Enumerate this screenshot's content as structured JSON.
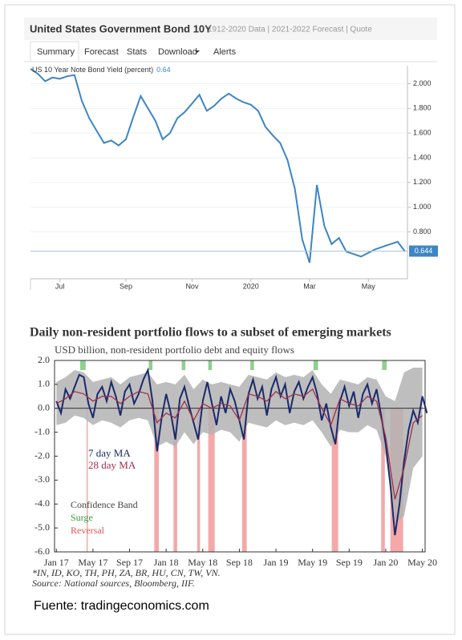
{
  "tabs": [
    "Summary",
    "Forecast",
    "Stats",
    "Download",
    "Alerts"
  ],
  "caption": "Fuente: tradingeconomics.com",
  "chart_data": [
    {
      "type": "line",
      "title": "United States Government Bond 10Y",
      "subtitle": "1912-2020 Data | 2021-2022 Forecast | Quote",
      "legend_label": "US 10 Year Note Bond Yield (percent)",
      "legend_value": 0.64,
      "last_value": 0.644,
      "categories": [
        null,
        null,
        null,
        null,
        "Jul",
        null,
        null,
        null,
        null,
        null,
        null,
        null,
        null,
        "Sep",
        null,
        null,
        null,
        null,
        null,
        null,
        null,
        null,
        "Nov",
        null,
        null,
        null,
        null,
        null,
        null,
        null,
        "2020",
        null,
        null,
        null,
        null,
        null,
        null,
        null,
        "Mar",
        null,
        null,
        null,
        null,
        null,
        null,
        null,
        "May",
        null,
        null,
        null,
        null,
        null
      ],
      "series": [
        {
          "name": "US 10 Year Note Bond Yield",
          "color": "#3d85c6",
          "values": [
            2.12,
            2.08,
            2.02,
            2.05,
            2.04,
            2.06,
            2.07,
            1.86,
            1.72,
            1.62,
            1.52,
            1.54,
            1.5,
            1.55,
            1.73,
            1.9,
            1.8,
            1.7,
            1.55,
            1.6,
            1.72,
            1.77,
            1.84,
            1.91,
            1.78,
            1.82,
            1.88,
            1.92,
            1.88,
            1.85,
            1.83,
            1.78,
            1.65,
            1.58,
            1.52,
            1.38,
            1.15,
            0.74,
            0.55,
            1.18,
            0.85,
            0.7,
            0.75,
            0.64,
            0.62,
            0.6,
            0.63,
            0.66,
            0.68,
            0.7,
            0.72,
            0.64
          ]
        }
      ],
      "ylim": [
        0.42,
        2.12
      ],
      "yticks": [
        {
          "value": 0.8,
          "label": "0.800"
        },
        {
          "value": 1.0,
          "label": "1.000"
        },
        {
          "value": 1.2,
          "label": "1.200"
        },
        {
          "value": 1.4,
          "label": "1.400"
        },
        {
          "value": 1.6,
          "label": "1.600"
        },
        {
          "value": 1.8,
          "label": "1.800"
        },
        {
          "value": 2.0,
          "label": "2.000"
        }
      ],
      "grid": true
    },
    {
      "type": "line",
      "title": "Daily non-resident portfolio flows to a subset of emerging markets",
      "subtitle": "USD billion, non-resident portfolio debt and equity flows",
      "xlim": [
        -0.2,
        40.3
      ],
      "xticks": [
        {
          "value": 0,
          "label": "Jan 17"
        },
        {
          "value": 4,
          "label": "May 17"
        },
        {
          "value": 8,
          "label": "Sep 17"
        },
        {
          "value": 12,
          "label": "Jan 18"
        },
        {
          "value": 16,
          "label": "May 18"
        },
        {
          "value": 20,
          "label": "Sep 18"
        },
        {
          "value": 24,
          "label": "Jan 19"
        },
        {
          "value": 28,
          "label": "May 19"
        },
        {
          "value": 32,
          "label": "Sep 19"
        },
        {
          "value": 36,
          "label": "Jan 20"
        },
        {
          "value": 40,
          "label": "May 20"
        }
      ],
      "ylim": [
        -6,
        2
      ],
      "yticks": [
        {
          "value": 2,
          "label": "2.0"
        },
        {
          "value": 1,
          "label": "1.0"
        },
        {
          "value": 0,
          "label": "0.0"
        },
        {
          "value": -1,
          "label": "-1.0"
        },
        {
          "value": -2,
          "label": "-2.0"
        },
        {
          "value": -3,
          "label": "-3.0"
        },
        {
          "value": -4,
          "label": "-4.0"
        },
        {
          "value": -5,
          "label": "-5.0"
        },
        {
          "value": -6,
          "label": "-6.0"
        }
      ],
      "band": {
        "name": "Confidence Band",
        "color": "#b3b3b3",
        "x": [
          0,
          1,
          2,
          3,
          4,
          5,
          6,
          7,
          8,
          9,
          10,
          11,
          12,
          13,
          14,
          15,
          16,
          17,
          18,
          19,
          20,
          21,
          22,
          23,
          24,
          25,
          26,
          27,
          28,
          29,
          30,
          31,
          32,
          33,
          34,
          35,
          36,
          37,
          38,
          39,
          40
        ],
        "upper": [
          1.1,
          1.3,
          1.6,
          1.5,
          1.1,
          1.2,
          1.3,
          1.0,
          1.3,
          1.4,
          1.5,
          1.0,
          1.1,
          1.0,
          1.4,
          0.8,
          1.2,
          1.0,
          1.1,
          1.0,
          0.9,
          1.4,
          1.3,
          1.2,
          1.5,
          1.3,
          1.4,
          1.3,
          1.6,
          1.0,
          0.6,
          1.2,
          1.1,
          1.0,
          1.3,
          1.2,
          0.5,
          0.3,
          1.5,
          1.7,
          1.7
        ],
        "lower": [
          -0.7,
          -0.6,
          -0.3,
          -0.4,
          -0.7,
          -0.5,
          -0.6,
          -0.8,
          -0.5,
          -0.4,
          -0.5,
          -1.6,
          -1.4,
          -1.6,
          -1.0,
          -1.5,
          -1.0,
          -1.1,
          -0.9,
          -1.0,
          -1.4,
          -0.6,
          -0.7,
          -0.8,
          -0.5,
          -0.7,
          -0.6,
          -0.7,
          -0.5,
          -1.0,
          -1.6,
          -0.9,
          -1.0,
          -1.0,
          -0.7,
          -0.9,
          -2.0,
          -4.8,
          -4.5,
          -2.5,
          -2.0
        ]
      },
      "surge": {
        "name": "Surge",
        "color": "#8fcf8f",
        "spans": [
          [
            2.6,
            3.2
          ],
          [
            10.1,
            10.5
          ],
          [
            13.7,
            14.1
          ],
          [
            16.6,
            17.0
          ],
          [
            21.2,
            21.6
          ],
          [
            28.1,
            28.6
          ],
          [
            35.6,
            36.1
          ]
        ]
      },
      "reversal": {
        "name": "Reversal",
        "color": "#f4a8a8",
        "spans": [
          [
            3.3,
            3.4
          ],
          [
            10.7,
            11.2
          ],
          [
            12.8,
            13.2
          ],
          [
            15.4,
            15.7
          ],
          [
            16.6,
            17.3
          ],
          [
            20.3,
            20.8
          ],
          [
            30.1,
            30.8
          ],
          [
            35.5,
            35.9
          ],
          [
            36.5,
            37.9
          ]
        ]
      },
      "series": [
        {
          "name": "7 day MA",
          "color": "#1a2a6c",
          "x": [
            0,
            0.5,
            1,
            1.5,
            2,
            2.5,
            3,
            3.5,
            4,
            4.5,
            5,
            5.5,
            6,
            6.5,
            7,
            7.5,
            8,
            8.5,
            9,
            9.5,
            10,
            10.5,
            11,
            11.5,
            12,
            12.5,
            13,
            13.5,
            14,
            14.5,
            15,
            15.5,
            16,
            16.5,
            17,
            17.5,
            18,
            18.5,
            19,
            19.5,
            20,
            20.5,
            21,
            21.5,
            22,
            22.5,
            23,
            23.5,
            24,
            24.5,
            25,
            25.5,
            26,
            26.5,
            27,
            27.5,
            28,
            28.5,
            29,
            29.5,
            30,
            30.5,
            31,
            31.5,
            32,
            32.5,
            33,
            33.5,
            34,
            34.5,
            35,
            35.5,
            36,
            36.5,
            37,
            37.5,
            38,
            38.5,
            39,
            39.5,
            40,
            40.5
          ],
          "values": [
            0.3,
            -0.2,
            0.8,
            0.4,
            0.9,
            1.4,
            1.3,
            0.2,
            -0.4,
            0.6,
            0.9,
            0.3,
            1.1,
            0.5,
            -0.3,
            0.7,
            1.0,
            0.2,
            0.6,
            1.2,
            1.6,
            0.3,
            -1.8,
            -0.4,
            0.6,
            -0.2,
            -1.3,
            0.4,
            0.9,
            0.1,
            -0.6,
            -1.3,
            0.3,
            1.1,
            0.2,
            -0.7,
            0.5,
            -0.2,
            0.8,
            0.3,
            -0.5,
            -1.3,
            0.6,
            1.2,
            0.4,
            0.9,
            -0.3,
            0.8,
            1.3,
            0.5,
            1.0,
            -0.2,
            0.7,
            1.1,
            0.4,
            0.9,
            1.3,
            0.6,
            -0.5,
            0.2,
            -0.8,
            -1.5,
            0.3,
            0.9,
            0.1,
            0.7,
            -0.4,
            0.6,
            1.0,
            0.2,
            0.8,
            -0.3,
            -1.5,
            -3.2,
            -5.3,
            -4.0,
            -2.2,
            -0.9,
            -0.1,
            -0.6,
            0.5,
            -0.2
          ]
        },
        {
          "name": "28 day MA",
          "color": "#a0304a",
          "x": [
            0,
            1,
            2,
            3,
            4,
            5,
            6,
            7,
            8,
            9,
            10,
            11,
            12,
            13,
            14,
            15,
            16,
            17,
            18,
            19,
            20,
            21,
            22,
            23,
            24,
            25,
            26,
            27,
            28,
            29,
            30,
            31,
            32,
            33,
            34,
            35,
            36,
            37,
            38,
            39,
            40
          ],
          "values": [
            0.2,
            0.4,
            0.7,
            0.6,
            0.3,
            0.5,
            0.5,
            0.2,
            0.5,
            0.7,
            0.6,
            -0.6,
            -0.2,
            -0.4,
            0.3,
            -0.5,
            0.2,
            0.0,
            0.2,
            0.1,
            -0.5,
            0.6,
            0.5,
            0.3,
            0.7,
            0.4,
            0.6,
            0.5,
            0.8,
            0.0,
            -0.7,
            0.4,
            0.2,
            0.1,
            0.5,
            0.3,
            -1.2,
            -3.8,
            -2.5,
            -0.6,
            -0.3
          ]
        }
      ],
      "notes": [
        "*IN, ID, KO, TH, PH, ZA, BR, HU, CN, TW, VN.",
        "Source: National sources, Bloomberg, IIF."
      ]
    }
  ]
}
